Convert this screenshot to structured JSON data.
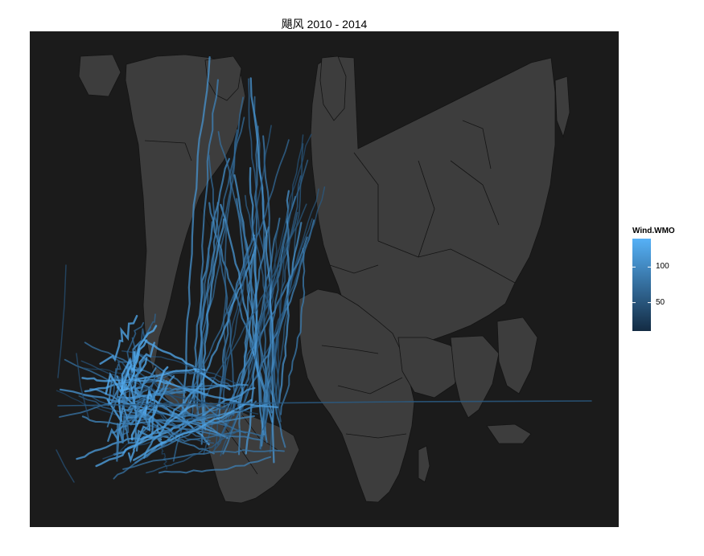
{
  "title": "飓风 2010 - 2014",
  "colors": {
    "panel": "#1b1b1b",
    "land": "#3d3d3d",
    "border": "#141414",
    "track_low": "#132b43",
    "track_high": "#56b1f7"
  },
  "legend": {
    "title": "Wind.WMO",
    "min": 10,
    "max": 140,
    "ticks": [
      {
        "value": 50,
        "label": "50"
      },
      {
        "value": 100,
        "label": "100"
      }
    ]
  }
}
